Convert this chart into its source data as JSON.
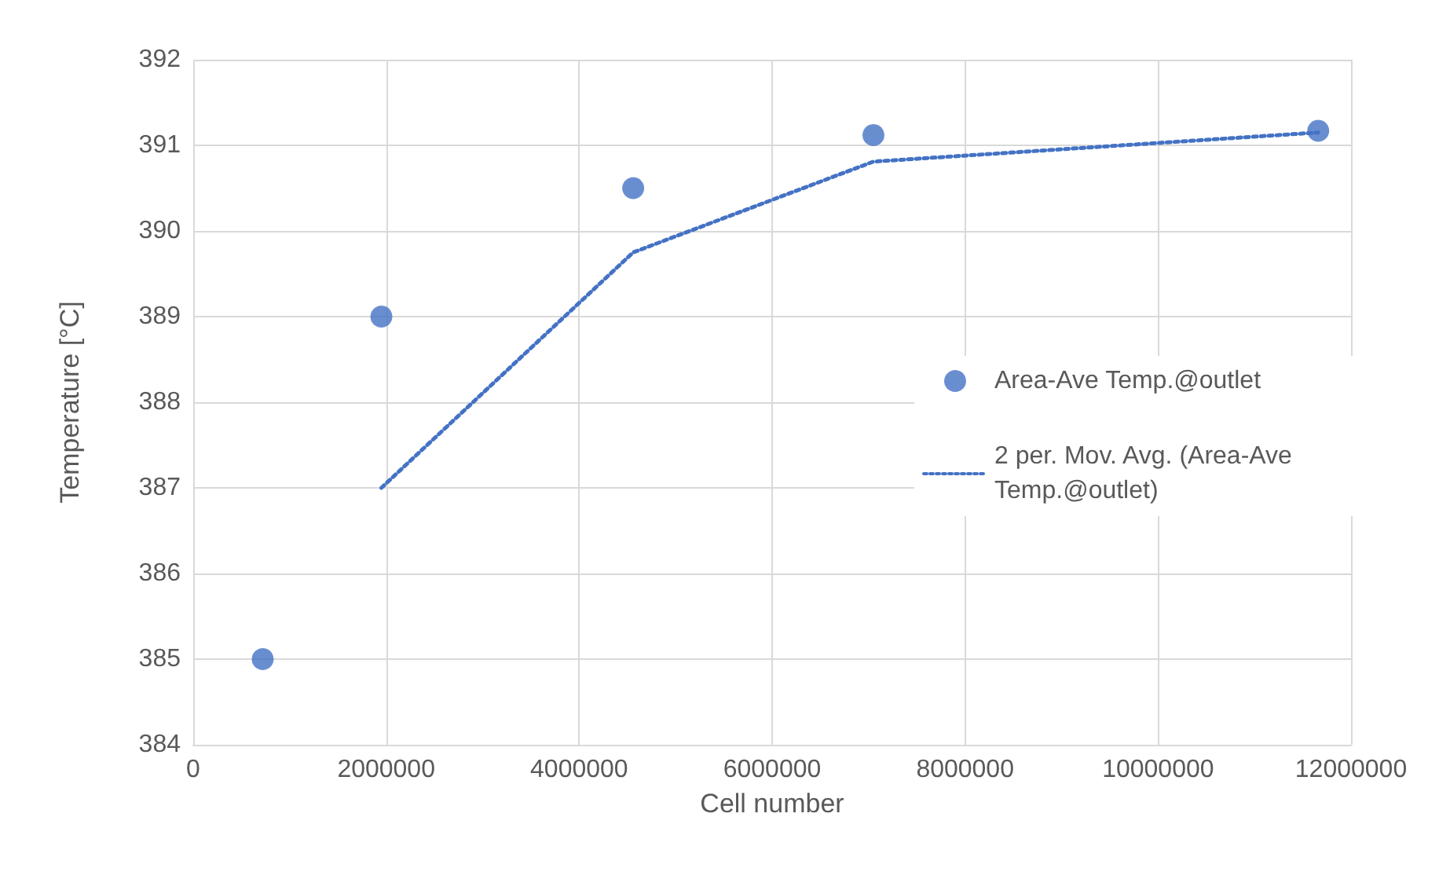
{
  "chart_data": {
    "type": "scatter",
    "xlabel": "Cell number",
    "ylabel": "Temperature [°C]",
    "xlim": [
      0,
      12000000
    ],
    "xticks": [
      0,
      2000000,
      4000000,
      6000000,
      8000000,
      10000000,
      12000000
    ],
    "ylim": [
      384,
      392
    ],
    "yticks": [
      384,
      385,
      386,
      387,
      388,
      389,
      390,
      391,
      392
    ],
    "grid": true,
    "legend": "right",
    "series": [
      {
        "name": "Area-Ave Temp.@outlet",
        "color": "#4472c4",
        "marker": "circle",
        "x": [
          720000,
          1950000,
          4560000,
          7050000,
          11660000
        ],
        "values": [
          385.0,
          389.0,
          390.5,
          391.12,
          391.17
        ]
      },
      {
        "type": "line",
        "name": "2 per. Mov. Avg. (Area-Ave Temp.@outlet)",
        "color": "#4472c4",
        "marker": "none",
        "line_style": "dotted",
        "x": [
          1950000,
          4560000,
          7050000,
          11660000
        ],
        "values": [
          387.0,
          389.75,
          390.81,
          391.15
        ]
      }
    ]
  }
}
